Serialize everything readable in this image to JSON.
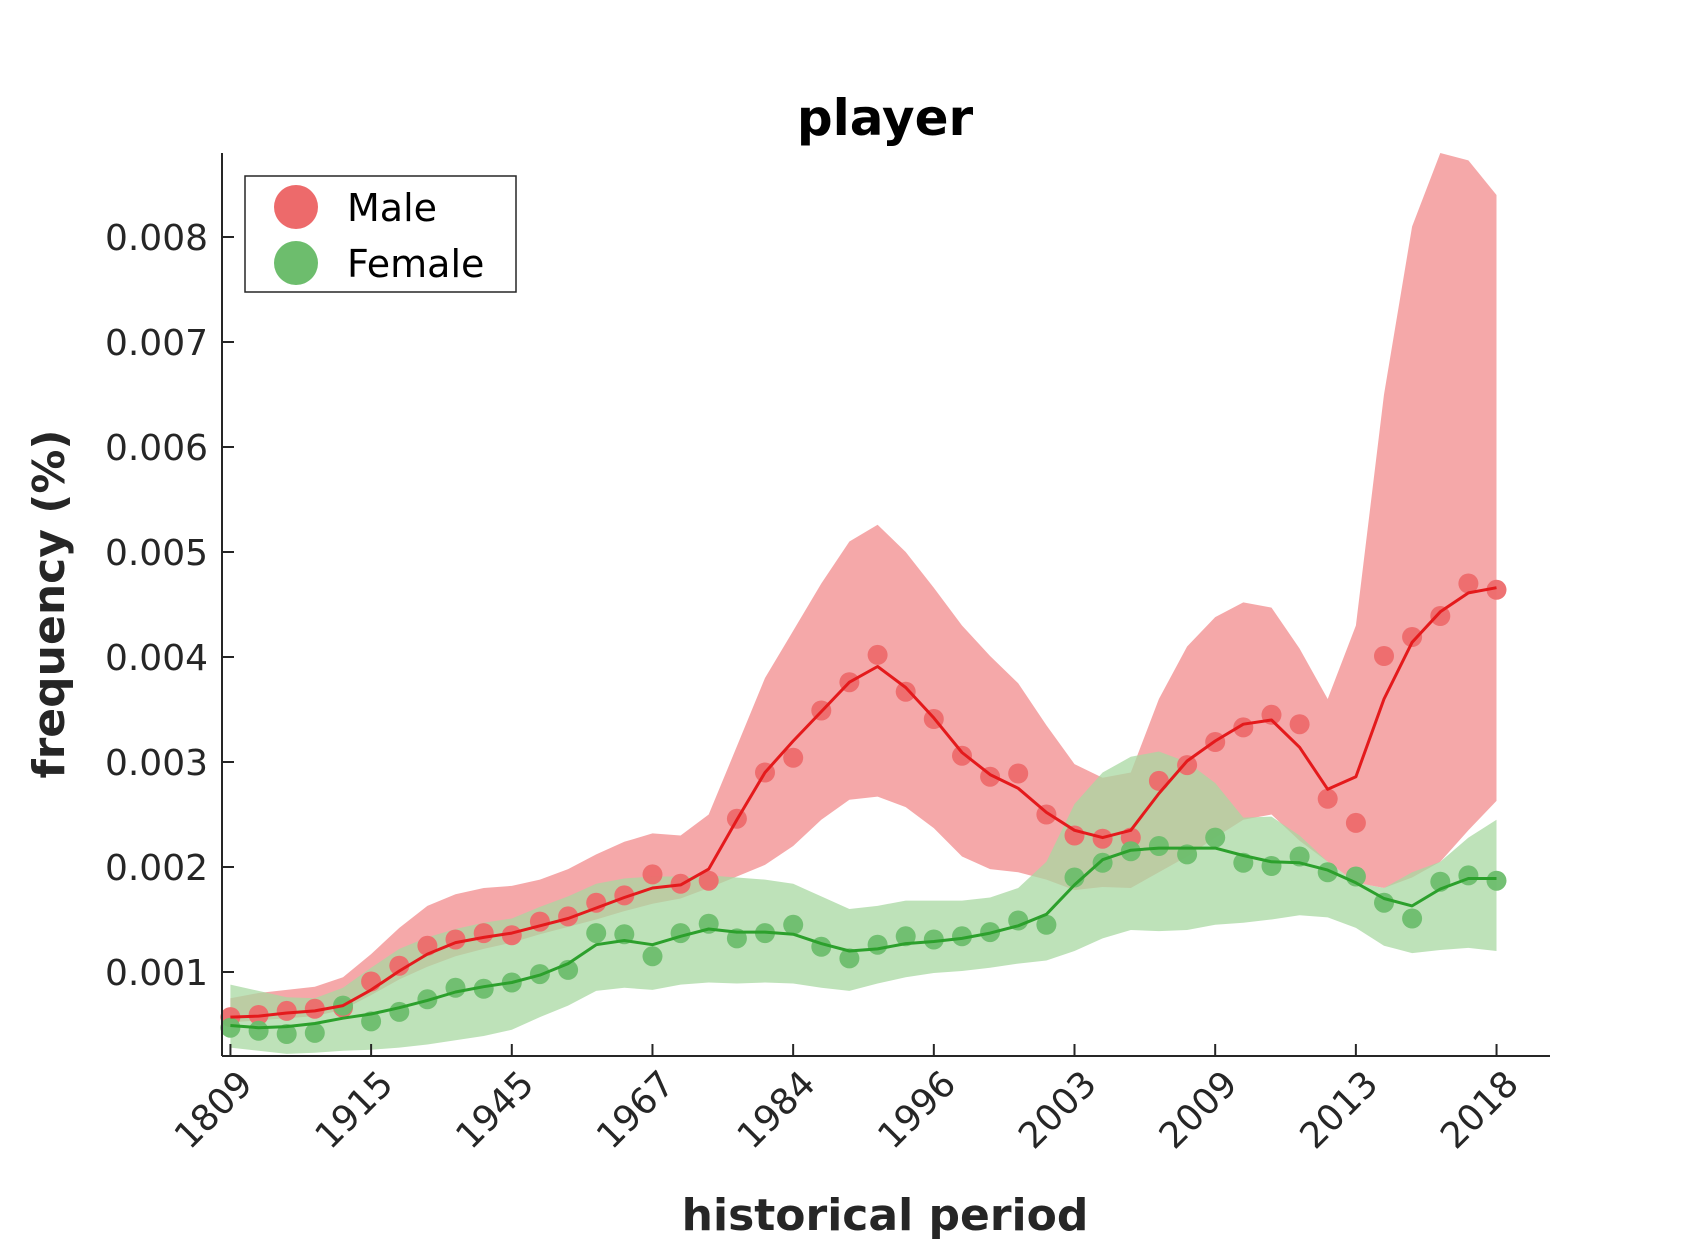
{
  "chart_data": {
    "type": "line",
    "title": "player",
    "xlabel": "historical period",
    "ylabel": "frequency (%)",
    "x_tick_labels": [
      "1809",
      "1915",
      "1945",
      "1967",
      "1984",
      "1996",
      "2003",
      "2009",
      "2013",
      "2018"
    ],
    "y_ticks": [
      0.001,
      0.002,
      0.003,
      0.004,
      0.005,
      0.006,
      0.007,
      0.008
    ],
    "y_tick_labels": [
      "0.001",
      "0.002",
      "0.003",
      "0.004",
      "0.005",
      "0.006",
      "0.007",
      "0.008"
    ],
    "ylim": [
      0.0002,
      0.0088
    ],
    "xlim": [
      -0.3,
      46.9
    ],
    "grid": false,
    "legend_position": "top-left",
    "series": [
      {
        "name": "Male",
        "color": "#e41a1c",
        "marker_color": "#ed6a6b",
        "band_color": "#f4a3a4",
        "values": [
          0.00057,
          0.00059,
          0.00063,
          0.00065,
          0.00066,
          0.00091,
          0.00106,
          0.00125,
          0.00131,
          0.00137,
          0.00135,
          0.00148,
          0.00153,
          0.00166,
          0.00173,
          0.00193,
          0.00184,
          0.00187,
          0.00246,
          0.0029,
          0.00304,
          0.00349,
          0.00376,
          0.00402,
          0.00367,
          0.00341,
          0.00306,
          0.00286,
          0.00289,
          0.0025,
          0.0023,
          0.00227,
          0.00228,
          0.00282,
          0.00297,
          0.00319,
          0.00333,
          0.00345,
          0.00336,
          0.00265,
          0.00242,
          0.00401,
          0.00419,
          0.00439,
          0.0047,
          0.00464
        ],
        "smooth": [
          0.00057,
          0.00058,
          0.00061,
          0.00063,
          0.00068,
          0.00083,
          0.00101,
          0.00117,
          0.00128,
          0.00133,
          0.00137,
          0.00144,
          0.00151,
          0.00161,
          0.00171,
          0.0018,
          0.00183,
          0.00198,
          0.00245,
          0.0029,
          0.0032,
          0.00348,
          0.00376,
          0.00391,
          0.00371,
          0.00342,
          0.00309,
          0.00288,
          0.00275,
          0.00252,
          0.00235,
          0.00228,
          0.00235,
          0.0027,
          0.00301,
          0.0032,
          0.00336,
          0.0034,
          0.00314,
          0.00274,
          0.00286,
          0.0036,
          0.00414,
          0.00443,
          0.00461,
          0.00466
        ],
        "band_upper": [
          0.00075,
          0.0008,
          0.00083,
          0.00086,
          0.00095,
          0.00117,
          0.00142,
          0.00163,
          0.00174,
          0.0018,
          0.00182,
          0.00188,
          0.00198,
          0.00212,
          0.00224,
          0.00232,
          0.0023,
          0.0025,
          0.00315,
          0.0038,
          0.00425,
          0.0047,
          0.0051,
          0.00526,
          0.005,
          0.00466,
          0.0043,
          0.00401,
          0.00375,
          0.00335,
          0.00298,
          0.00285,
          0.0029,
          0.0036,
          0.0041,
          0.00438,
          0.00452,
          0.00447,
          0.00408,
          0.0036,
          0.0043,
          0.0065,
          0.0081,
          0.0088,
          0.00873,
          0.0084
        ],
        "band_lower": [
          0.00052,
          0.00054,
          0.00056,
          0.00058,
          0.00064,
          0.00078,
          0.00093,
          0.00105,
          0.00115,
          0.00122,
          0.00128,
          0.00136,
          0.00143,
          0.0015,
          0.00158,
          0.00165,
          0.0017,
          0.0018,
          0.00191,
          0.00202,
          0.0022,
          0.00245,
          0.00264,
          0.00267,
          0.00257,
          0.00237,
          0.0021,
          0.00198,
          0.00195,
          0.00188,
          0.00178,
          0.00181,
          0.0018,
          0.00195,
          0.0021,
          0.00228,
          0.00245,
          0.0025,
          0.00225,
          0.00205,
          0.00185,
          0.0018,
          0.0019,
          0.00205,
          0.00235,
          0.00263
        ]
      },
      {
        "name": "Female",
        "color": "#2ca02c",
        "marker_color": "#6dbd6d",
        "band_color": "#a8d8a2",
        "values": [
          0.00047,
          0.00044,
          0.00041,
          0.00042,
          0.00068,
          0.00053,
          0.00062,
          0.00074,
          0.00085,
          0.00084,
          0.0009,
          0.00098,
          0.00102,
          0.00137,
          0.00136,
          0.00115,
          0.00137,
          0.00146,
          0.00132,
          0.00137,
          0.00145,
          0.00124,
          0.00113,
          0.00126,
          0.00134,
          0.00131,
          0.00134,
          0.00138,
          0.00149,
          0.00145,
          0.0019,
          0.00204,
          0.00215,
          0.0022,
          0.00212,
          0.00228,
          0.00204,
          0.00201,
          0.0021,
          0.00195,
          0.00191,
          0.00166,
          0.00151,
          0.00186,
          0.00192,
          0.00187
        ],
        "smooth": [
          0.00049,
          0.00047,
          0.00048,
          0.00051,
          0.00056,
          0.0006,
          0.00066,
          0.00073,
          0.00081,
          0.00086,
          0.0009,
          0.00097,
          0.00108,
          0.00126,
          0.0013,
          0.00126,
          0.00134,
          0.00141,
          0.00138,
          0.00138,
          0.00136,
          0.00127,
          0.0012,
          0.00122,
          0.00127,
          0.00129,
          0.00132,
          0.00137,
          0.00144,
          0.00155,
          0.00183,
          0.00207,
          0.00216,
          0.00218,
          0.00218,
          0.00218,
          0.00211,
          0.00205,
          0.00204,
          0.00197,
          0.00185,
          0.0017,
          0.00163,
          0.00179,
          0.00189,
          0.00189
        ],
        "band_upper": [
          0.00088,
          0.00082,
          0.00076,
          0.00075,
          0.00085,
          0.00104,
          0.00122,
          0.00133,
          0.00141,
          0.00147,
          0.00151,
          0.00162,
          0.00172,
          0.00184,
          0.00189,
          0.00191,
          0.00191,
          0.00192,
          0.0019,
          0.00188,
          0.00184,
          0.00172,
          0.0016,
          0.00163,
          0.00168,
          0.00168,
          0.00168,
          0.00171,
          0.0018,
          0.00205,
          0.0026,
          0.0029,
          0.00305,
          0.0031,
          0.003,
          0.0028,
          0.00247,
          0.00248,
          0.0023,
          0.00205,
          0.00185,
          0.0018,
          0.00195,
          0.00205,
          0.00228,
          0.00245
        ],
        "band_lower": [
          0.00028,
          0.00025,
          0.00022,
          0.00023,
          0.00025,
          0.00026,
          0.00028,
          0.00031,
          0.00035,
          0.00039,
          0.00045,
          0.00057,
          0.00068,
          0.00082,
          0.00085,
          0.00083,
          0.00088,
          0.0009,
          0.00089,
          0.0009,
          0.00089,
          0.00085,
          0.00082,
          0.00089,
          0.00095,
          0.00099,
          0.00101,
          0.00104,
          0.00108,
          0.00111,
          0.0012,
          0.00132,
          0.0014,
          0.00139,
          0.0014,
          0.00145,
          0.00147,
          0.0015,
          0.00154,
          0.00152,
          0.00142,
          0.00125,
          0.00118,
          0.00121,
          0.00123,
          0.0012
        ]
      }
    ]
  }
}
